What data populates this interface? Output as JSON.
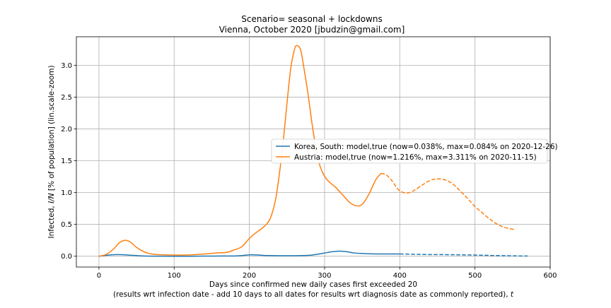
{
  "chart_data": {
    "type": "line",
    "title": "Scenario= seasonal + lockdowns",
    "subtitle": "Vienna, October 2020 [jbudzin@gmail.com]",
    "xlabel": "Days since confirmed new daily cases first exceeded 20",
    "xlabel2_prefix": "(results wrt infection date - add 10 days to all dates for results wrt diagnosis date as commonly reported), ",
    "xlabel2_var": "t",
    "ylabel_prefix": "Infected, ",
    "ylabel_var": "I/N",
    "ylabel_suffix": " [% of population] (lin.scale-zoom)",
    "xlim": [
      -30,
      600
    ],
    "ylim": [
      -0.17,
      3.45
    ],
    "xticks": [
      0,
      100,
      200,
      300,
      400,
      500,
      600
    ],
    "yticks": [
      0.0,
      0.5,
      1.0,
      1.5,
      2.0,
      2.5,
      3.0
    ],
    "xtick_labels": [
      "0",
      "100",
      "200",
      "300",
      "400",
      "500",
      "600"
    ],
    "ytick_labels": [
      "0.0",
      "0.5",
      "1.0",
      "1.5",
      "2.0",
      "2.5",
      "3.0"
    ],
    "grid": true,
    "legend_position": "center-right",
    "series": [
      {
        "name": "Korea, South: model,true (now=0.038%, max=0.084% on 2020-12-26)",
        "color": "#1f77b4",
        "solid_until": 400,
        "x": [
          0,
          10,
          20,
          30,
          40,
          50,
          60,
          80,
          100,
          120,
          140,
          160,
          180,
          190,
          200,
          210,
          220,
          240,
          260,
          280,
          290,
          300,
          310,
          320,
          330,
          340,
          360,
          380,
          400,
          420,
          440,
          460,
          480,
          500,
          520,
          540,
          560,
          570
        ],
        "values": [
          0.0,
          0.015,
          0.025,
          0.025,
          0.018,
          0.01,
          0.004,
          0.001,
          0.0,
          0.0,
          0.002,
          0.003,
          0.004,
          0.01,
          0.022,
          0.02,
          0.012,
          0.008,
          0.008,
          0.015,
          0.03,
          0.05,
          0.07,
          0.08,
          0.07,
          0.05,
          0.038,
          0.036,
          0.036,
          0.03,
          0.026,
          0.025,
          0.022,
          0.018,
          0.012,
          0.008,
          0.004,
          0.003
        ]
      },
      {
        "name": "Austria: model,true (now=1.216%, max=3.311% on 2020-11-15)",
        "color": "#ff7f0e",
        "solid_until": 375,
        "x": [
          0,
          10,
          20,
          27,
          35,
          42,
          50,
          60,
          70,
          80,
          100,
          120,
          140,
          155,
          170,
          180,
          190,
          200,
          210,
          220,
          228,
          235,
          240,
          245,
          250,
          255,
          260,
          263,
          268,
          272,
          278,
          285,
          292,
          298,
          305,
          315,
          325,
          335,
          345,
          352,
          360,
          368,
          375,
          382,
          390,
          397,
          405,
          413,
          420,
          430,
          440,
          450,
          460,
          470,
          480,
          490,
          500,
          510,
          520,
          530,
          540,
          552
        ],
        "values": [
          0.0,
          0.03,
          0.12,
          0.21,
          0.25,
          0.22,
          0.14,
          0.07,
          0.035,
          0.025,
          0.018,
          0.02,
          0.035,
          0.05,
          0.06,
          0.1,
          0.15,
          0.28,
          0.38,
          0.47,
          0.6,
          0.9,
          1.3,
          1.8,
          2.4,
          2.95,
          3.25,
          3.311,
          3.25,
          3.0,
          2.55,
          1.95,
          1.5,
          1.3,
          1.18,
          1.08,
          0.95,
          0.83,
          0.79,
          0.84,
          1.0,
          1.2,
          1.3,
          1.28,
          1.18,
          1.06,
          1.0,
          1.0,
          1.04,
          1.12,
          1.19,
          1.216,
          1.2,
          1.14,
          1.03,
          0.91,
          0.78,
          0.68,
          0.58,
          0.5,
          0.45,
          0.42
        ]
      }
    ]
  }
}
